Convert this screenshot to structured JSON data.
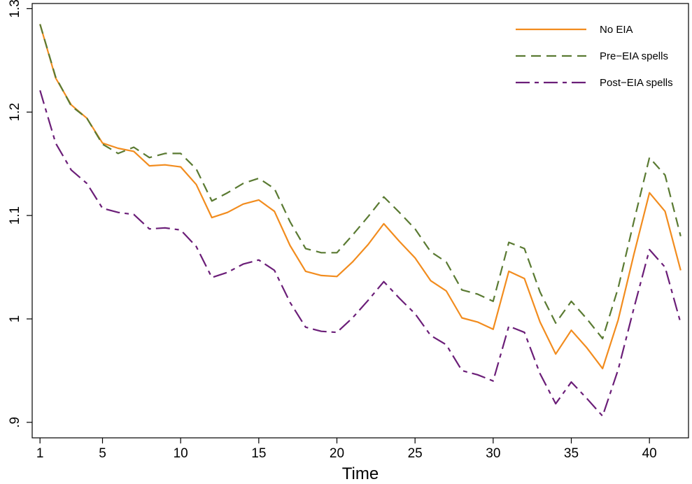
{
  "chart_data": {
    "type": "line",
    "title": "",
    "xlabel": "Time",
    "ylabel": "",
    "xlim": [
      0.5,
      42.5
    ],
    "ylim": [
      0.885,
      1.305
    ],
    "xticks": [
      1,
      5,
      10,
      15,
      20,
      25,
      30,
      35,
      40
    ],
    "xtick_labels": [
      "1",
      "5",
      "10",
      "15",
      "20",
      "25",
      "30",
      "35",
      "40"
    ],
    "yticks": [
      0.9,
      1.0,
      1.1,
      1.2,
      1.3
    ],
    "ytick_labels": [
      ".9",
      "1",
      "1.1",
      "1.2",
      "1.3"
    ],
    "grid": false,
    "legend_position": "top-right",
    "x": [
      1,
      2,
      3,
      4,
      5,
      6,
      7,
      8,
      9,
      10,
      11,
      12,
      13,
      14,
      15,
      16,
      17,
      18,
      19,
      20,
      21,
      22,
      23,
      24,
      25,
      26,
      27,
      28,
      29,
      30,
      31,
      32,
      33,
      34,
      35,
      36,
      37,
      38,
      39,
      40,
      41,
      42
    ],
    "series": [
      {
        "name": "No EIA",
        "color": "#f28c1e",
        "dash": "solid",
        "values": [
          1.285,
          1.233,
          1.207,
          1.194,
          1.17,
          1.165,
          1.162,
          1.148,
          1.149,
          1.147,
          1.13,
          1.098,
          1.103,
          1.111,
          1.115,
          1.104,
          1.071,
          1.046,
          1.042,
          1.041,
          1.055,
          1.072,
          1.092,
          1.075,
          1.059,
          1.037,
          1.027,
          1.001,
          0.997,
          0.99,
          1.046,
          1.039,
          0.997,
          0.966,
          0.989,
          0.972,
          0.952,
          0.999,
          1.062,
          1.122,
          1.104,
          1.047
        ]
      },
      {
        "name": "Pre−EIA spells",
        "color": "#5a7a32",
        "dash": "long-dash",
        "values": [
          1.285,
          1.234,
          1.206,
          1.194,
          1.169,
          1.16,
          1.166,
          1.156,
          1.16,
          1.16,
          1.145,
          1.114,
          1.122,
          1.131,
          1.136,
          1.126,
          1.094,
          1.068,
          1.064,
          1.064,
          1.081,
          1.099,
          1.118,
          1.103,
          1.087,
          1.065,
          1.055,
          1.028,
          1.024,
          1.017,
          1.074,
          1.068,
          1.026,
          0.996,
          1.017,
          1.0,
          0.981,
          1.03,
          1.094,
          1.156,
          1.139,
          1.08
        ]
      },
      {
        "name": "Post−EIA spells",
        "color": "#6b1e78",
        "dash": "long-short",
        "values": [
          1.221,
          1.17,
          1.144,
          1.131,
          1.107,
          1.103,
          1.101,
          1.087,
          1.088,
          1.086,
          1.07,
          1.04,
          1.045,
          1.053,
          1.057,
          1.047,
          1.016,
          0.992,
          0.988,
          0.987,
          1.001,
          1.018,
          1.036,
          1.02,
          1.005,
          0.984,
          0.975,
          0.95,
          0.946,
          0.94,
          0.993,
          0.987,
          0.947,
          0.918,
          0.939,
          0.923,
          0.906,
          0.951,
          1.01,
          1.067,
          1.05,
          0.996
        ]
      }
    ]
  }
}
